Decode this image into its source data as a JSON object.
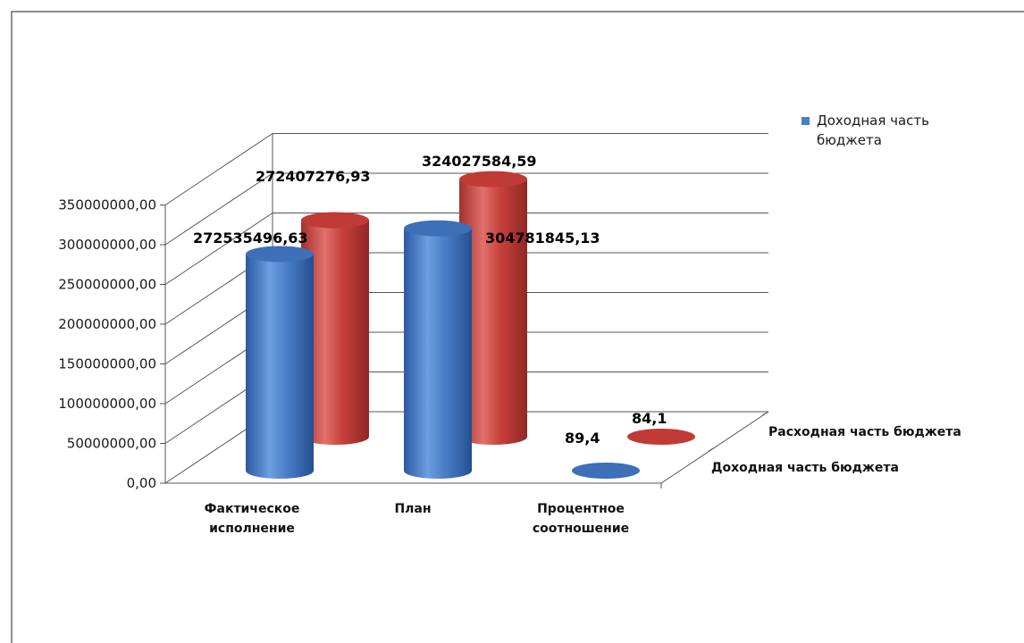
{
  "chart_data": {
    "type": "bar",
    "style": "3d-cylinder",
    "categories": [
      "Фактическое исполнение",
      "План",
      "Процентное соотношение"
    ],
    "series": [
      {
        "name": "Доходная часть бюджета",
        "color": "#4a7fc8",
        "values": [
          272535496.63,
          304781845.13,
          89.4
        ],
        "labels": [
          "272535496,63",
          "304781845,13",
          "89,4"
        ]
      },
      {
        "name": "Расходная часть бюджета",
        "color": "#c9403c",
        "values": [
          272407276.93,
          324027584.59,
          84.1
        ],
        "labels": [
          "272407276,93",
          "324027584,59",
          "84,1"
        ]
      }
    ],
    "y_ticks": [
      "0,00",
      "50000000,00",
      "100000000,00",
      "150000000,00",
      "200000000,00",
      "250000000,00",
      "300000000,00",
      "350000000,00"
    ],
    "ylim": [
      0,
      350000000
    ],
    "grid": true,
    "legend": {
      "position": "right",
      "entries": [
        "Доходная часть бюджета"
      ]
    },
    "depth_axis_labels": [
      "Расходная часть бюджета",
      "Доходная часть бюджета"
    ],
    "category_label_lines": [
      [
        "Фактическое",
        "исполнение"
      ],
      [
        "План"
      ],
      [
        "Процентное",
        "соотношение"
      ]
    ],
    "legend_label_lines": [
      "Доходная часть",
      "бюджета"
    ]
  }
}
